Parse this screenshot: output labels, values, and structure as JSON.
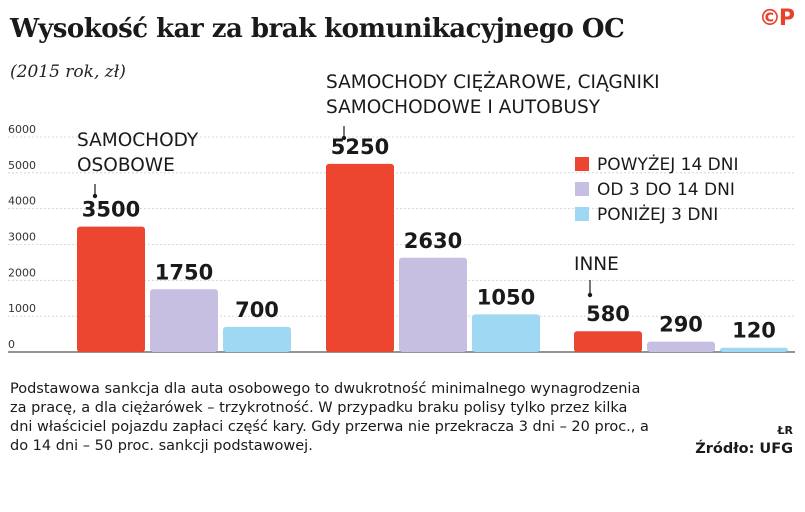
{
  "header": {
    "title": "Wysokość kar za brak komunikacyjnego OC",
    "subtitle": "(2015 rok, zł)",
    "logo": "©P"
  },
  "chart_data": {
    "type": "bar",
    "title": "Wysokość kar za brak komunikacyjnego OC",
    "subtitle": "(2015 rok, zł)",
    "ylim": [
      0,
      6000
    ],
    "y_ticks": [
      "0",
      "1000",
      "2000",
      "3000",
      "4000",
      "5000",
      "6000"
    ],
    "grid": true,
    "legend_position": "right",
    "categories": [
      [
        "SAMOCHODY",
        "OSOBOWE"
      ],
      [
        "SAMOCHODY CIĘŻAROWE, CIĄGNIKI",
        "SAMOCHODOWE I AUTOBUSY"
      ],
      [
        "INNE"
      ]
    ],
    "series": [
      {
        "name": "POWYŻEJ 14 DNI",
        "color": "#ec4530",
        "values": [
          3500,
          5250,
          580
        ]
      },
      {
        "name": "OD 3 DO 14 DNI",
        "color": "#c6bfe2",
        "values": [
          1750,
          2630,
          290
        ]
      },
      {
        "name": "PONIŻEJ 3 DNI",
        "color": "#9fd8f2",
        "values": [
          700,
          1050,
          120
        ]
      }
    ]
  },
  "footer": {
    "note": "Podstawowa sankcja dla auta osobowego to dwukrotność minimalnego wynagrodzenia za pracę, a dla ciężarówek – trzykrotność. W przypadku braku polisy tylko przez kilka dni właściciel pojazdu zapłaci część kary. Gdy przerwa nie przekracza 3 dni – 20 proc., a do 14 dni – 50 proc. sankcji podstawowej.",
    "author": "ŁR",
    "source": "Źródło: UFG"
  }
}
